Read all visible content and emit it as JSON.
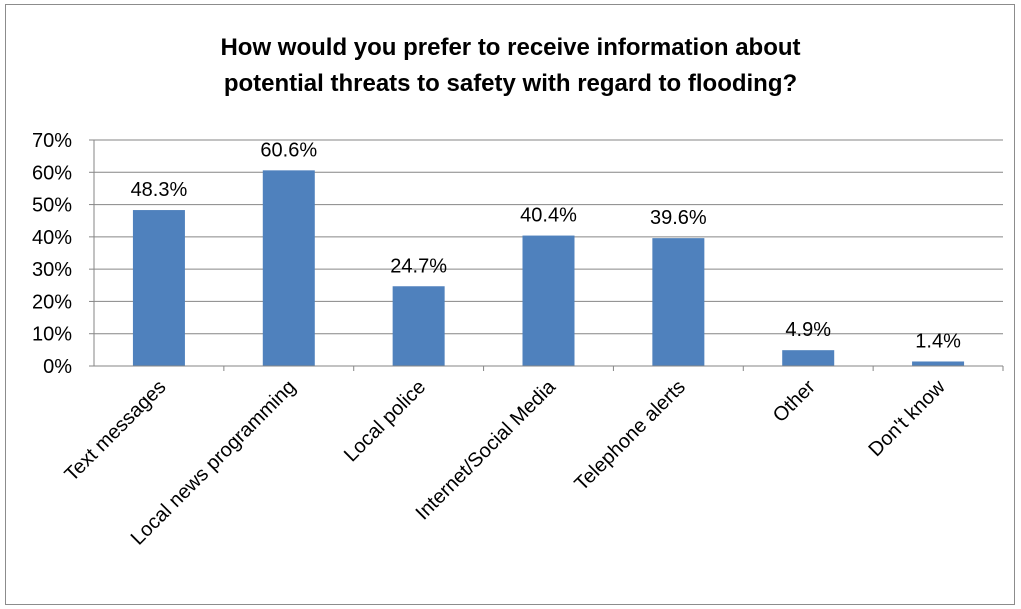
{
  "chart_data": {
    "type": "bar",
    "title_lines": [
      "How would you prefer to receive information about",
      "potential threats to safety with regard to flooding?"
    ],
    "categories": [
      "Text messages",
      "Local news programming",
      "Local police",
      "Internet/Social Media",
      "Telephone alerts",
      "Other",
      "Don't know"
    ],
    "values": [
      48.3,
      60.6,
      24.7,
      40.4,
      39.6,
      4.9,
      1.4
    ],
    "data_labels": [
      "48.3%",
      "60.6%",
      "24.7%",
      "40.4%",
      "39.6%",
      "4.9%",
      "1.4%"
    ],
    "yticks": [
      0,
      10,
      20,
      30,
      40,
      50,
      60,
      70
    ],
    "ytick_labels": [
      "0%",
      "10%",
      "20%",
      "30%",
      "40%",
      "50%",
      "60%",
      "70%"
    ],
    "ylim": [
      0,
      70
    ],
    "xlabel": "",
    "ylabel": "",
    "grid": true,
    "legend": "none",
    "bar_color": "#4f81bd"
  }
}
